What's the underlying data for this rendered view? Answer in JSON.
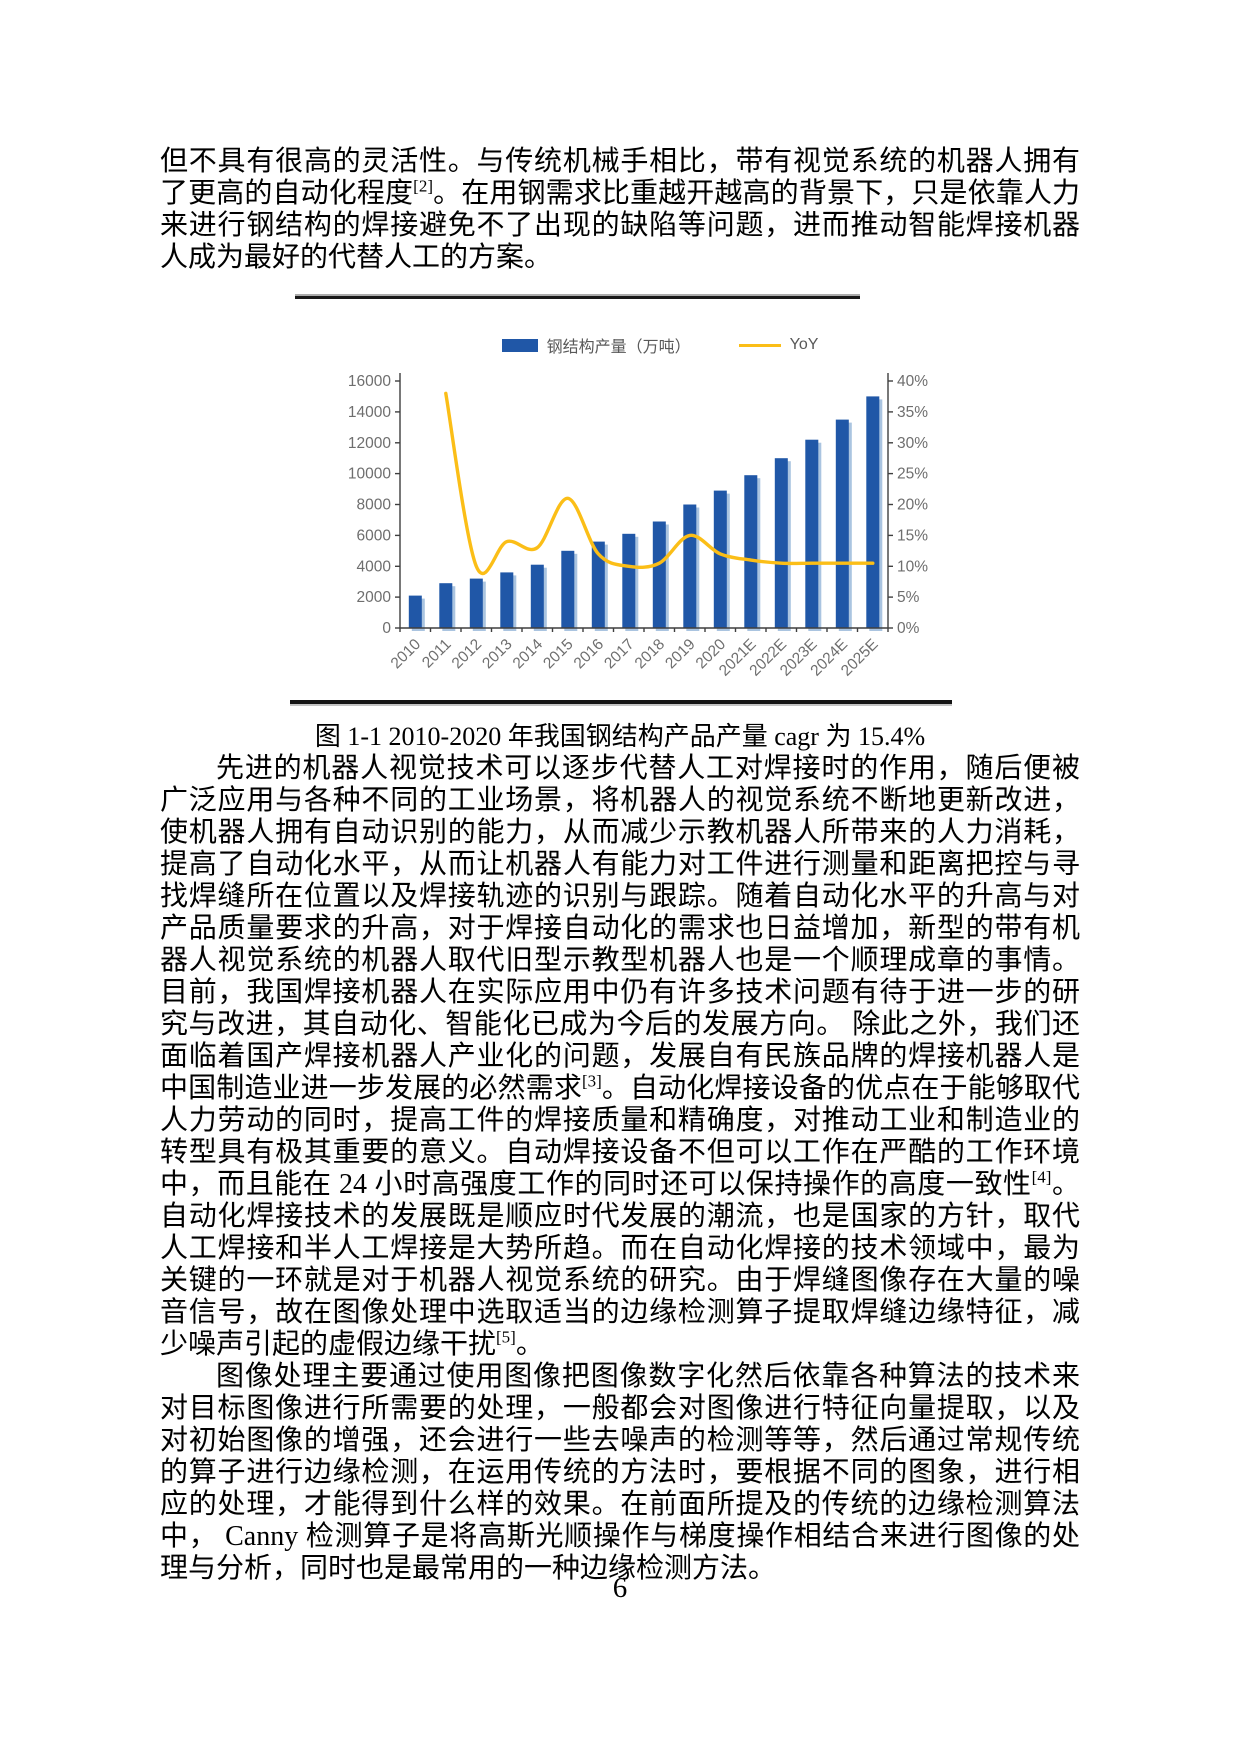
{
  "page": {
    "number": "6"
  },
  "paragraphs": {
    "p1": {
      "s1": "但不具有很高的灵活性。与传统机械手相比，带有视觉系统的机器人拥有了更高的自动化程度",
      "ref1": "[2]",
      "s2": "。在用钢需求比重越开越高的背景下，只是依靠人力来进行钢结构的焊接避免不了出现的缺陷等问题，进而推动智能焊接机器人成为最好的代替人工的方案。"
    },
    "p2": {
      "s1": "先进的机器人视觉技术可以逐步代替人工对焊接时的作用，随后便被广泛应用与各种不同的工业场景，将机器人的视觉系统不断地更新改进，使机器人拥有自动识别的能力，从而减少示教机器人所带来的人力消耗，提高了自动化水平，从而让机器人有能力对工件进行测量和距离把控与寻找焊缝所在位置以及焊接轨迹的识别与跟踪。随着自动化水平的升高与对产品质量要求的升高，对于焊接自动化的需求也日益增加，新型的带有机器人视觉系统的机器人取代旧型示教型机器人也是一个顺理成章的事情。目前，我国焊接机器人在实际应用中仍有许多技术问题有待于进一步的研究与改进，其自动化、智能化已成为今后的发展方向。 除此之外，我们还面临着国产焊接机器人产业化的问题，发展自有民族品牌的焊接机器人是中国制造业进一步发展的必然需求",
      "ref1": "[3]",
      "s2": "。自动化焊接设备的优点在于能够取代人力劳动的同时，提高工件的焊接质量和精确度，对推动工业和制造业的转型具有极其重要的意义。自动焊接设备不但可以工作在严酷的工作环境中，而且能在 24 小时高强度工作的同时还可以保持操作的高度一致性",
      "ref2": "[4]",
      "s3": "。自动化焊接技术的发展既是顺应时代发展的潮流，也是国家的方针，取代人工焊接和半人工焊接是大势所趋。而在自动化焊接的技术领域中，最为关键的一环就是对于机器人视觉系统的研究。由于焊缝图像存在大量的噪音信号，故在图像处理中选取适当的边缘检测算子提取焊缝边缘特征，减少噪声引起的虚假边缘干扰",
      "ref3": "[5]",
      "s4": "。"
    },
    "p3": {
      "s1": "图像处理主要通过使用图像把图像数字化然后依靠各种算法的技术来对目标图像进行所需要的处理，一般都会对图像进行特征向量提取，以及对初始图像的增强，还会进行一些去噪声的检测等等，然后通过常规传统的算子进行边缘检测，在运用传统的方法时，要根据不同的图象，进行相应的处理，才能得到什么样的效果。在前面所提及的传统的边缘检测算法中， Canny 检测算子是将高斯光顺操作与梯度操作相结合来进行图像的处理与分析，同时也是最常用的一种边缘检测方法。"
    }
  },
  "figure": {
    "caption": "图 1-1 2010-2020 年我国钢结构产品产量 cagr 为 15.4%"
  },
  "chart_data": {
    "type": "bar",
    "title": "",
    "categories": [
      "2010",
      "2011",
      "2012",
      "2013",
      "2014",
      "2015",
      "2016",
      "2017",
      "2018",
      "2019",
      "2020",
      "2021E",
      "2022E",
      "2023E",
      "2024E",
      "2025E"
    ],
    "series": [
      {
        "name": "钢结构产量（万吨）",
        "type": "bar",
        "y_axis": "left",
        "color": "#2057A7",
        "values": [
          2100,
          2900,
          3200,
          3600,
          4100,
          5000,
          5600,
          6100,
          6900,
          8000,
          8900,
          9900,
          11000,
          12200,
          13500,
          15000
        ]
      },
      {
        "name": "YoY",
        "type": "line",
        "y_axis": "right",
        "color": "#FBBE17",
        "values": [
          null,
          38,
          10,
          14,
          13,
          21,
          12,
          10,
          10.5,
          15,
          12,
          11,
          10.5,
          10.5,
          10.5,
          10.5
        ]
      }
    ],
    "left_axis": {
      "min": 0,
      "max": 16000,
      "step": 2000,
      "tick_labels": [
        "16000",
        "14000",
        "12000",
        "10000",
        "8000",
        "6000",
        "4000",
        "2000",
        "0"
      ]
    },
    "right_axis": {
      "min": 0,
      "max": 40,
      "step": 5,
      "tick_labels": [
        "40%",
        "35%",
        "30%",
        "25%",
        "20%",
        "15%",
        "10%",
        "5%",
        "0%"
      ]
    },
    "legend_position": "top",
    "grid": false
  }
}
